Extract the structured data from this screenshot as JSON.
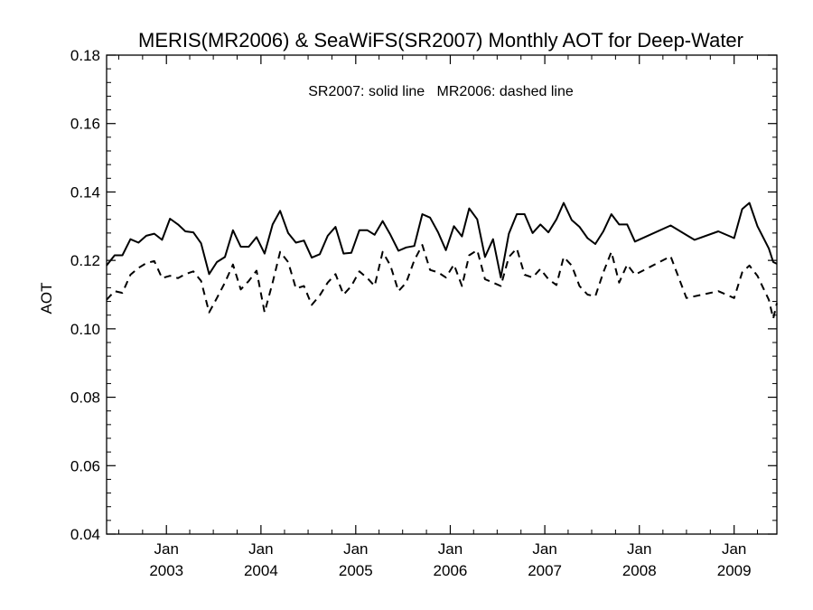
{
  "chart_data": {
    "type": "line",
    "title": "MERIS(MR2006) & SeaWiFS(SR2007) Monthly AOT for Deep-Water",
    "xlabel": "",
    "ylabel": "AOT",
    "annotation": "SR2007: solid line   MR2006: dashed line",
    "xlim": [
      "2002-05-15",
      "2009-06-15"
    ],
    "ylim": [
      0.04,
      0.18
    ],
    "yticks": [
      0.04,
      0.06,
      0.08,
      0.1,
      0.12,
      0.14,
      0.16,
      0.18
    ],
    "ytick_labels": [
      "0.04",
      "0.06",
      "0.08",
      "0.10",
      "0.12",
      "0.14",
      "0.16",
      "0.18"
    ],
    "xticks": [
      {
        "date": "2003-01-01",
        "label_top": "Jan",
        "label_bottom": "2003"
      },
      {
        "date": "2004-01-01",
        "label_top": "Jan",
        "label_bottom": "2004"
      },
      {
        "date": "2005-01-01",
        "label_top": "Jan",
        "label_bottom": "2005"
      },
      {
        "date": "2006-01-01",
        "label_top": "Jan",
        "label_bottom": "2006"
      },
      {
        "date": "2007-01-01",
        "label_top": "Jan",
        "label_bottom": "2007"
      },
      {
        "date": "2008-01-01",
        "label_top": "Jan",
        "label_bottom": "2008"
      },
      {
        "date": "2009-01-01",
        "label_top": "Jan",
        "label_bottom": "2009"
      }
    ],
    "grid": false,
    "series": [
      {
        "style": "solid",
        "points": [
          [
            "2002-05-15",
            0.1185
          ],
          [
            "2002-06-15",
            0.1215
          ],
          [
            "2002-07-15",
            0.1215
          ],
          [
            "2002-08-15",
            0.1262
          ],
          [
            "2002-09-15",
            0.1252
          ],
          [
            "2002-10-15",
            0.1272
          ],
          [
            "2002-11-15",
            0.1278
          ],
          [
            "2002-12-15",
            0.126
          ],
          [
            "2003-01-15",
            0.1322
          ],
          [
            "2003-02-15",
            0.1305
          ],
          [
            "2003-03-15",
            0.1285
          ],
          [
            "2003-04-15",
            0.1282
          ],
          [
            "2003-05-15",
            0.125
          ],
          [
            "2003-06-15",
            0.116
          ],
          [
            "2003-07-15",
            0.1195
          ],
          [
            "2003-08-15",
            0.121
          ],
          [
            "2003-09-15",
            0.1288
          ],
          [
            "2003-10-15",
            0.124
          ],
          [
            "2003-11-15",
            0.124
          ],
          [
            "2003-12-15",
            0.1268
          ],
          [
            "2004-01-15",
            0.122
          ],
          [
            "2004-02-15",
            0.1305
          ],
          [
            "2004-03-15",
            0.1345
          ],
          [
            "2004-04-15",
            0.128
          ],
          [
            "2004-05-15",
            0.1252
          ],
          [
            "2004-06-15",
            0.1258
          ],
          [
            "2004-07-15",
            0.1208
          ],
          [
            "2004-08-15",
            0.1218
          ],
          [
            "2004-09-15",
            0.1272
          ],
          [
            "2004-10-15",
            0.1298
          ],
          [
            "2004-11-15",
            0.122
          ],
          [
            "2004-12-15",
            0.1222
          ],
          [
            "2005-01-15",
            0.1288
          ],
          [
            "2005-02-15",
            0.1288
          ],
          [
            "2005-03-15",
            0.1275
          ],
          [
            "2005-04-15",
            0.1315
          ],
          [
            "2005-05-15",
            0.1275
          ],
          [
            "2005-06-15",
            0.1228
          ],
          [
            "2005-07-15",
            0.1238
          ],
          [
            "2005-08-15",
            0.1242
          ],
          [
            "2005-09-15",
            0.1335
          ],
          [
            "2005-10-15",
            0.1325
          ],
          [
            "2005-11-15",
            0.1282
          ],
          [
            "2005-12-15",
            0.123
          ],
          [
            "2006-01-15",
            0.13
          ],
          [
            "2006-02-15",
            0.127
          ],
          [
            "2006-03-15",
            0.1352
          ],
          [
            "2006-04-15",
            0.132
          ],
          [
            "2006-05-15",
            0.121
          ],
          [
            "2006-06-15",
            0.1262
          ],
          [
            "2006-07-15",
            0.115
          ],
          [
            "2006-08-15",
            0.1278
          ],
          [
            "2006-09-15",
            0.1335
          ],
          [
            "2006-10-15",
            0.1335
          ],
          [
            "2006-11-15",
            0.128
          ],
          [
            "2006-12-15",
            0.1305
          ],
          [
            "2007-01-15",
            0.1282
          ],
          [
            "2007-02-15",
            0.132
          ],
          [
            "2007-03-15",
            0.1368
          ],
          [
            "2007-04-15",
            0.1318
          ],
          [
            "2007-05-15",
            0.1298
          ],
          [
            "2007-06-15",
            0.1265
          ],
          [
            "2007-07-15",
            0.1248
          ],
          [
            "2007-08-15",
            0.1285
          ],
          [
            "2007-09-15",
            0.1335
          ],
          [
            "2007-10-15",
            0.1305
          ],
          [
            "2007-11-15",
            0.1305
          ],
          [
            "2007-12-15",
            0.1255
          ],
          [
            "2008-05-01",
            0.1302
          ],
          [
            "2008-08-01",
            0.126
          ],
          [
            "2008-11-01",
            0.1285
          ],
          [
            "2009-01-01",
            0.1265
          ],
          [
            "2009-02-01",
            0.135
          ],
          [
            "2009-03-01",
            0.1368
          ],
          [
            "2009-04-01",
            0.13
          ],
          [
            "2009-05-15",
            0.1235
          ],
          [
            "2009-06-01",
            0.1195
          ],
          [
            "2009-06-15",
            0.119
          ]
        ]
      },
      {
        "style": "dashed",
        "points": [
          [
            "2002-05-15",
            0.1085
          ],
          [
            "2002-06-15",
            0.111
          ],
          [
            "2002-07-15",
            0.1105
          ],
          [
            "2002-08-15",
            0.1158
          ],
          [
            "2002-09-15",
            0.1178
          ],
          [
            "2002-10-15",
            0.1192
          ],
          [
            "2002-11-15",
            0.1198
          ],
          [
            "2002-12-15",
            0.1148
          ],
          [
            "2003-01-15",
            0.1155
          ],
          [
            "2003-02-15",
            0.1148
          ],
          [
            "2003-03-15",
            0.116
          ],
          [
            "2003-04-15",
            0.1168
          ],
          [
            "2003-05-15",
            0.114
          ],
          [
            "2003-06-15",
            0.1048
          ],
          [
            "2003-07-15",
            0.109
          ],
          [
            "2003-08-15",
            0.1135
          ],
          [
            "2003-09-15",
            0.1188
          ],
          [
            "2003-10-15",
            0.1115
          ],
          [
            "2003-11-15",
            0.114
          ],
          [
            "2003-12-15",
            0.117
          ],
          [
            "2004-01-15",
            0.1048
          ],
          [
            "2004-02-15",
            0.1135
          ],
          [
            "2004-03-15",
            0.1225
          ],
          [
            "2004-04-15",
            0.1195
          ],
          [
            "2004-05-15",
            0.1118
          ],
          [
            "2004-06-15",
            0.1125
          ],
          [
            "2004-07-15",
            0.107
          ],
          [
            "2004-08-15",
            0.1098
          ],
          [
            "2004-09-15",
            0.1135
          ],
          [
            "2004-10-15",
            0.116
          ],
          [
            "2004-11-15",
            0.11
          ],
          [
            "2004-12-15",
            0.1125
          ],
          [
            "2005-01-15",
            0.1168
          ],
          [
            "2005-02-15",
            0.1148
          ],
          [
            "2005-03-15",
            0.1125
          ],
          [
            "2005-04-15",
            0.1225
          ],
          [
            "2005-05-15",
            0.1185
          ],
          [
            "2005-06-15",
            0.111
          ],
          [
            "2005-07-15",
            0.1135
          ],
          [
            "2005-08-15",
            0.12
          ],
          [
            "2005-09-15",
            0.1245
          ],
          [
            "2005-10-15",
            0.1172
          ],
          [
            "2005-11-15",
            0.1165
          ],
          [
            "2005-12-15",
            0.115
          ],
          [
            "2006-01-15",
            0.1188
          ],
          [
            "2006-02-15",
            0.1125
          ],
          [
            "2006-03-15",
            0.1215
          ],
          [
            "2006-04-15",
            0.123
          ],
          [
            "2006-05-15",
            0.1145
          ],
          [
            "2006-06-15",
            0.1135
          ],
          [
            "2006-07-15",
            0.1125
          ],
          [
            "2006-08-15",
            0.121
          ],
          [
            "2006-09-15",
            0.1235
          ],
          [
            "2006-10-15",
            0.1158
          ],
          [
            "2006-11-15",
            0.115
          ],
          [
            "2006-12-15",
            0.1175
          ],
          [
            "2007-01-15",
            0.1145
          ],
          [
            "2007-02-15",
            0.1128
          ],
          [
            "2007-03-15",
            0.121
          ],
          [
            "2007-04-15",
            0.1185
          ],
          [
            "2007-05-15",
            0.1125
          ],
          [
            "2007-06-15",
            0.11
          ],
          [
            "2007-07-15",
            0.1095
          ],
          [
            "2007-08-15",
            0.1165
          ],
          [
            "2007-09-15",
            0.1225
          ],
          [
            "2007-10-15",
            0.1135
          ],
          [
            "2007-11-15",
            0.1188
          ],
          [
            "2007-12-15",
            0.1158
          ],
          [
            "2008-05-01",
            0.1212
          ],
          [
            "2008-07-01",
            0.109
          ],
          [
            "2008-11-01",
            0.111
          ],
          [
            "2009-01-01",
            0.109
          ],
          [
            "2009-02-01",
            0.1165
          ],
          [
            "2009-03-01",
            0.1185
          ],
          [
            "2009-04-01",
            0.1155
          ],
          [
            "2009-05-15",
            0.1085
          ],
          [
            "2009-06-01",
            0.103
          ],
          [
            "2009-06-15",
            0.1075
          ]
        ]
      }
    ]
  }
}
